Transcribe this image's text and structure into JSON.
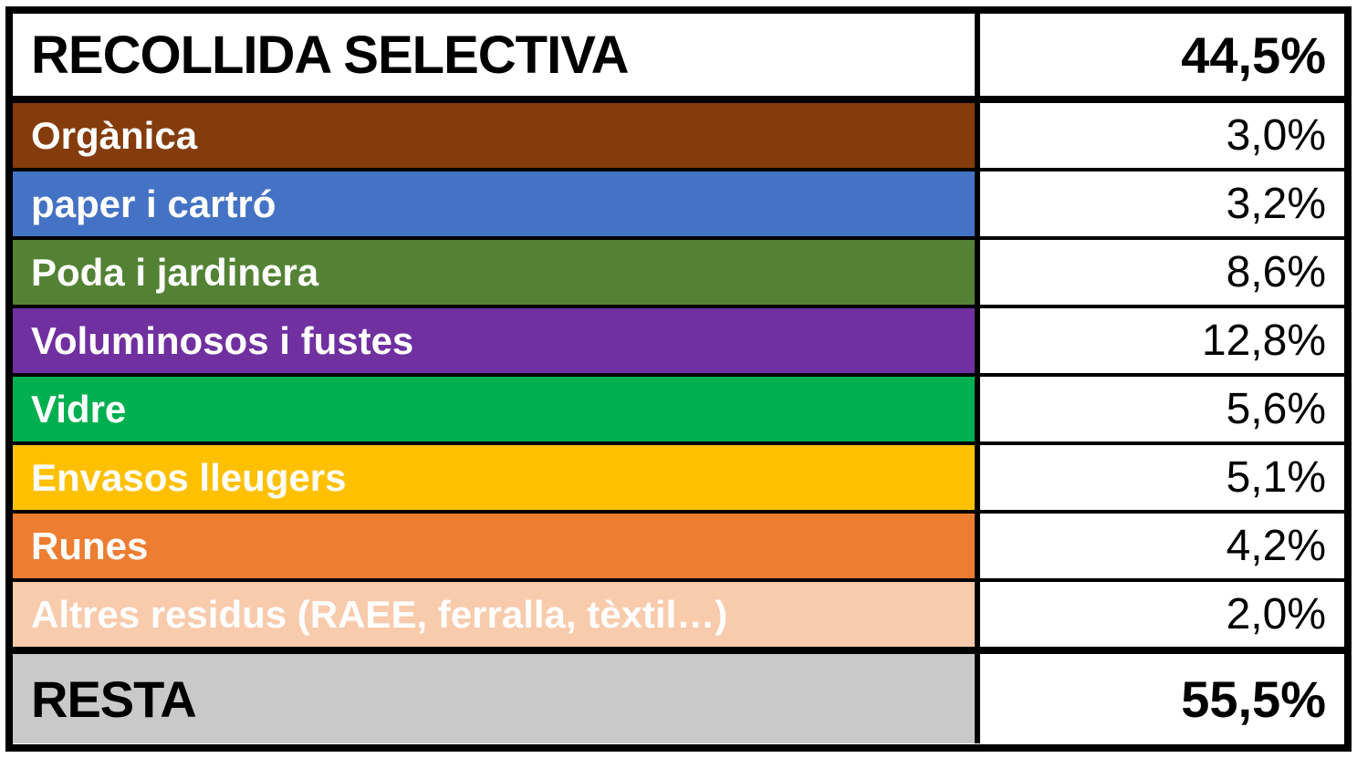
{
  "table": {
    "header": {
      "label": "RECOLLIDA SELECTIVA",
      "value": "44,5%"
    },
    "rows": [
      {
        "label": "Orgànica",
        "value": "3,0%",
        "color": "#843C0C",
        "text_color": "#FFFFFF"
      },
      {
        "label": "paper i cartró",
        "value": "3,2%",
        "color": "#4472C4",
        "text_color": "#FFFFFF"
      },
      {
        "label": "Poda i jardinera",
        "value": "8,6%",
        "color": "#548235",
        "text_color": "#FFFFFF"
      },
      {
        "label": "Voluminosos i fustes",
        "value": "12,8%",
        "color": "#7030A0",
        "text_color": "#FFFFFF"
      },
      {
        "label": "Vidre",
        "value": "5,6%",
        "color": "#00B050",
        "text_color": "#FFFFFF"
      },
      {
        "label": "Envasos lleugers",
        "value": "5,1%",
        "color": "#FFC000",
        "text_color": "#FFFFFF"
      },
      {
        "label": "Runes",
        "value": "4,2%",
        "color": "#ED7D31",
        "text_color": "#FFFFFF"
      },
      {
        "label": "Altres residus (RAEE, ferralla, tèxtil…)",
        "value": "2,0%",
        "color": "#F8CBAD",
        "text_color": "#FFFFFF"
      }
    ],
    "footer": {
      "label": "RESTA",
      "value": "55,5%",
      "color": "#C9C9C9",
      "text_color": "#000000"
    },
    "border_color": "#000000"
  },
  "chart_data": {
    "type": "table",
    "title": "RECOLLIDA SELECTIVA",
    "categories": [
      "Orgànica",
      "paper i cartró",
      "Poda i jardinera",
      "Voluminosos i fustes",
      "Vidre",
      "Envasos lleugers",
      "Runes",
      "Altres residus (RAEE, ferralla, tèxtil…)"
    ],
    "values": [
      3.0,
      3.2,
      8.6,
      12.8,
      5.6,
      5.1,
      4.2,
      2.0
    ],
    "totals": {
      "RECOLLIDA SELECTIVA": 44.5,
      "RESTA": 55.5
    },
    "unit": "%",
    "decimal_separator": ","
  }
}
